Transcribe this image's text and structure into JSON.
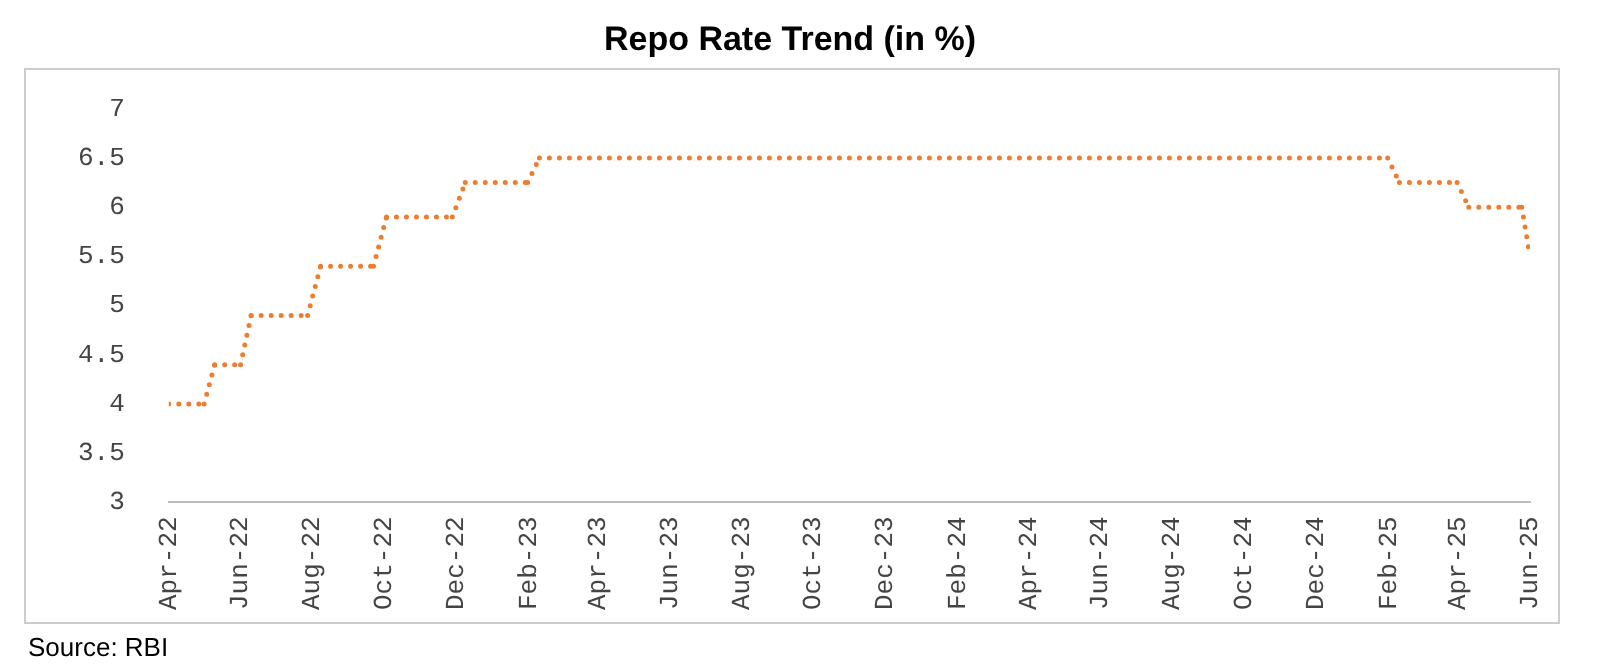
{
  "chart_data": {
    "type": "line",
    "title": "Repo Rate Trend (in %)",
    "x": [
      "2022-04-01",
      "2022-05-01",
      "2022-05-10",
      "2022-06-01",
      "2022-06-10",
      "2022-07-28",
      "2022-08-08",
      "2022-09-22",
      "2022-10-03",
      "2022-11-28",
      "2022-12-09",
      "2023-01-31",
      "2023-02-10",
      "2025-01-31",
      "2025-02-10",
      "2025-03-31",
      "2025-04-10",
      "2025-05-25",
      "2025-06-01"
    ],
    "series": [
      {
        "color": "#ed7d31",
        "values": [
          4,
          4,
          4.4,
          4.4,
          4.9,
          4.9,
          5.4,
          5.4,
          5.9,
          5.9,
          6.25,
          6.25,
          6.5,
          6.5,
          6.25,
          6.25,
          6,
          6,
          5.5
        ]
      }
    ],
    "xlim": [
      "2022-04",
      "2025-06"
    ],
    "xticks": [
      {
        "value": "2022-04",
        "label": "Apr-22"
      },
      {
        "value": "2022-06",
        "label": "Jun-22"
      },
      {
        "value": "2022-08",
        "label": "Aug-22"
      },
      {
        "value": "2022-10",
        "label": "Oct-22"
      },
      {
        "value": "2022-12",
        "label": "Dec-22"
      },
      {
        "value": "2023-02",
        "label": "Feb-23"
      },
      {
        "value": "2023-04",
        "label": "Apr-23"
      },
      {
        "value": "2023-06",
        "label": "Jun-23"
      },
      {
        "value": "2023-08",
        "label": "Aug-23"
      },
      {
        "value": "2023-10",
        "label": "Oct-23"
      },
      {
        "value": "2023-12",
        "label": "Dec-23"
      },
      {
        "value": "2024-02",
        "label": "Feb-24"
      },
      {
        "value": "2024-04",
        "label": "Apr-24"
      },
      {
        "value": "2024-06",
        "label": "Jun-24"
      },
      {
        "value": "2024-08",
        "label": "Aug-24"
      },
      {
        "value": "2024-10",
        "label": "Oct-24"
      },
      {
        "value": "2024-12",
        "label": "Dec-24"
      },
      {
        "value": "2025-02",
        "label": "Feb-25"
      },
      {
        "value": "2025-04",
        "label": "Apr-25"
      },
      {
        "value": "2025-06",
        "label": "Jun-25"
      }
    ],
    "ylim": [
      3,
      7
    ],
    "yticks": [
      3,
      3.5,
      4,
      4.5,
      5,
      5.5,
      6,
      6.5,
      7
    ],
    "line_style": "dotted",
    "marker": "none",
    "grid": false,
    "legend": false,
    "annotations": [
      "Source: RBI"
    ]
  }
}
